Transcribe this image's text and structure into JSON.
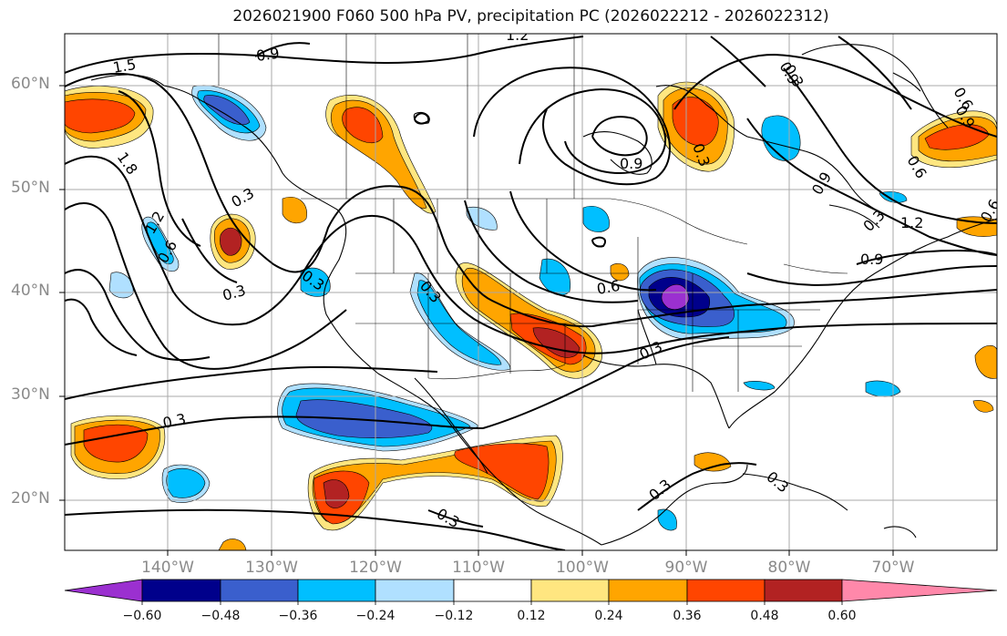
{
  "title": "2026021900 F060 500 hPa PV, precipitation PC (2026022212 - 2026022312)",
  "lat_labels": [
    "60°N",
    "50°N",
    "40°N",
    "30°N",
    "20°N"
  ],
  "lon_labels": [
    "140°W",
    "130°W",
    "120°W",
    "110°W",
    "100°W",
    "90°W",
    "80°W",
    "70°W"
  ],
  "contour_labels": [
    "1.5",
    "1.2",
    "0.9",
    "1.8",
    "0.3",
    "1.2",
    "0.6",
    "0.3",
    "0.3",
    "0.3",
    "0.6",
    "0.9",
    "0.3",
    "0.3",
    "0.9",
    "0.6",
    "0.9",
    "1.2",
    "0.9",
    "0.3",
    "0.3",
    "0.3",
    "0.6",
    "0.3",
    "0.9",
    "0.3",
    "0.6",
    "0.3"
  ],
  "colorbar": {
    "ticks": [
      "−0.60",
      "−0.48",
      "−0.36",
      "−0.24",
      "−0.12",
      "0.12",
      "0.24",
      "0.36",
      "0.48",
      "0.60"
    ],
    "colors": [
      "#9b30d0",
      "#00008b",
      "#3a5fcd",
      "#00bfff",
      "#b0e0ff",
      "#ffffff",
      "#ffe680",
      "#ffa500",
      "#ff4500",
      "#b22222",
      "#ff88aa"
    ]
  }
}
